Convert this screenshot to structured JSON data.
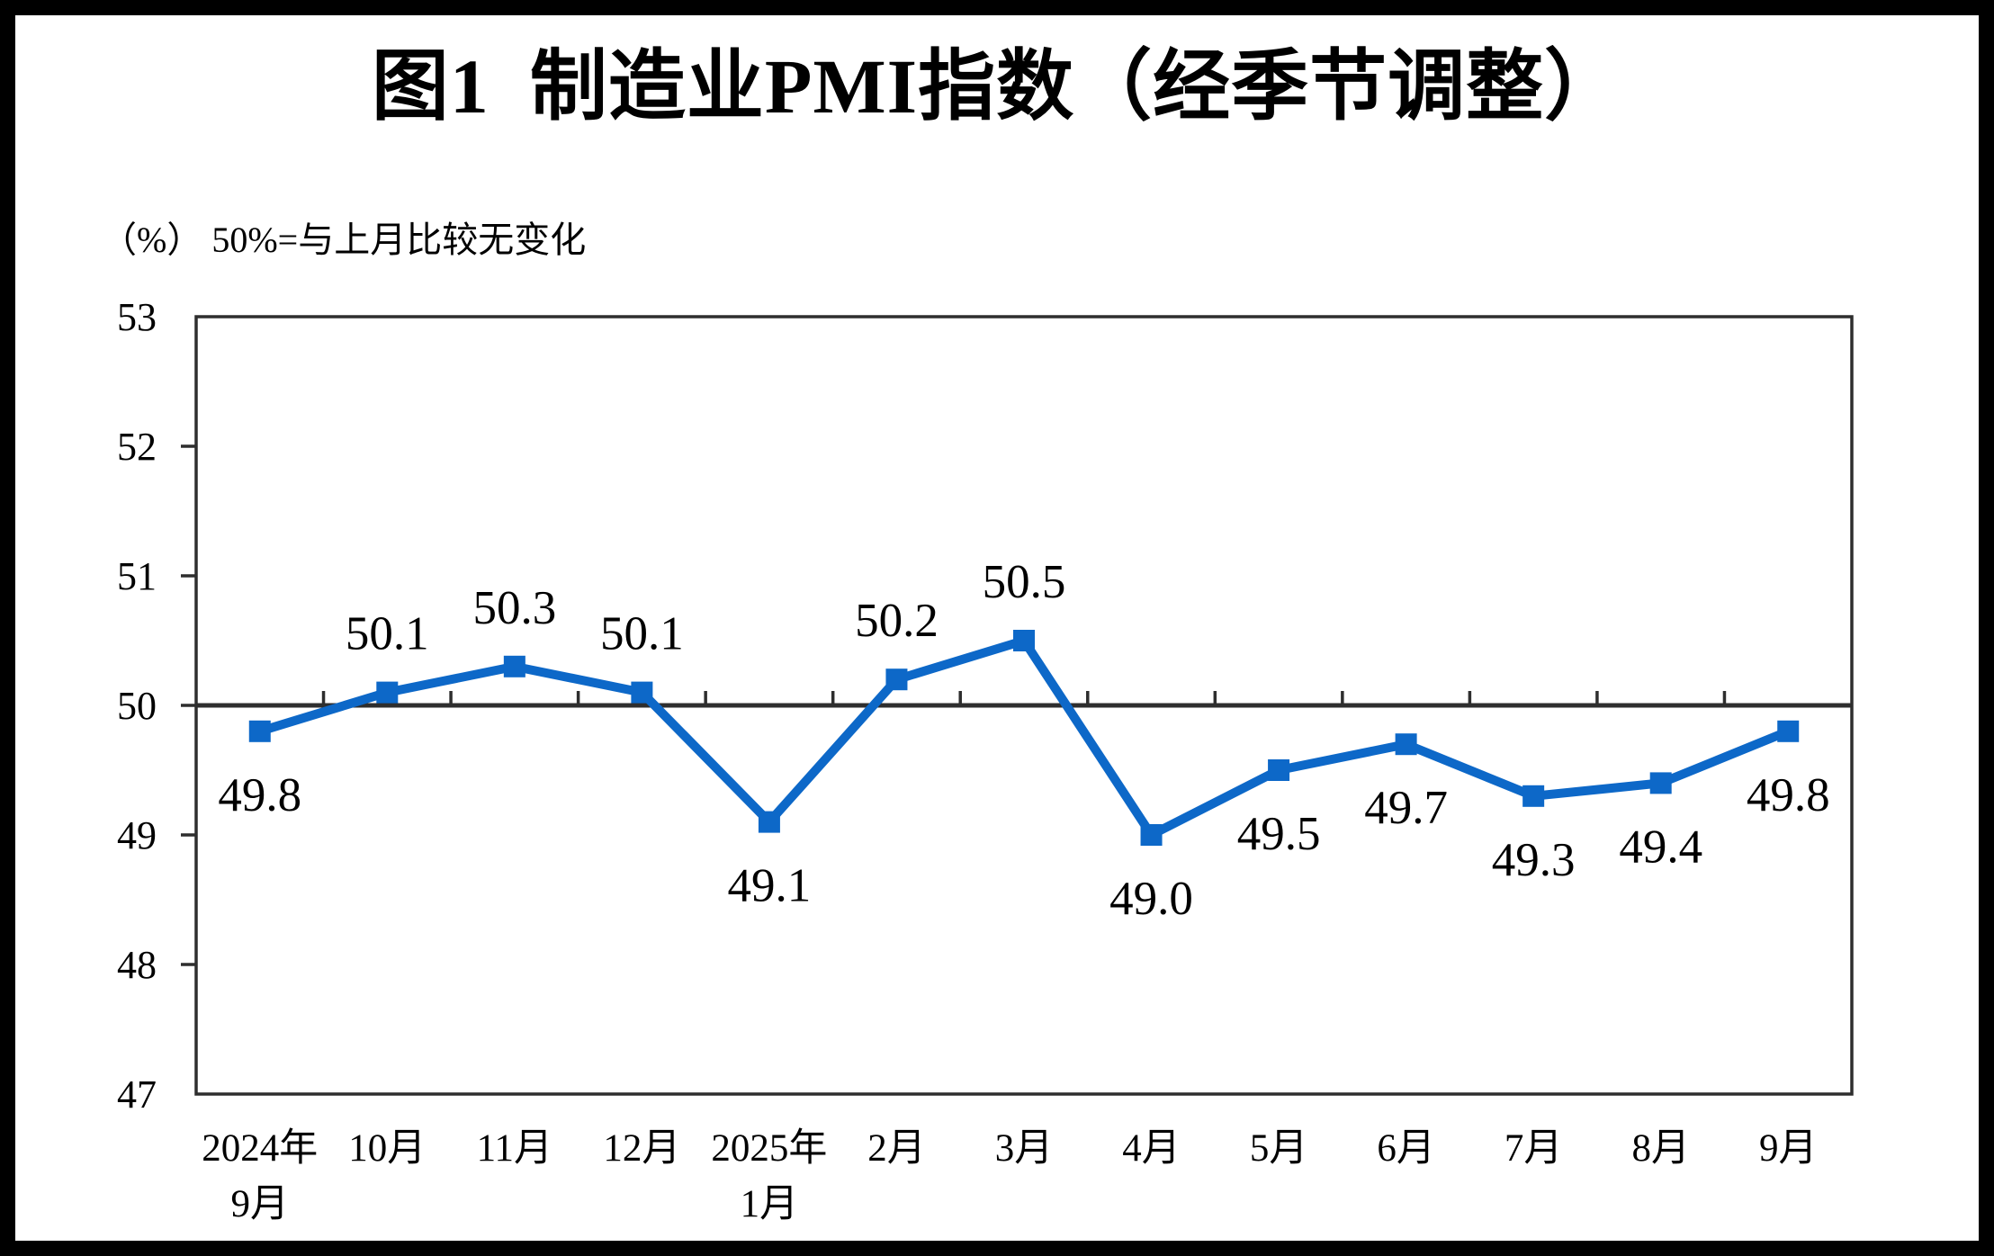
{
  "chart_data": {
    "type": "line",
    "title": "图1  制造业PMI指数（经季节调整）",
    "unit_note": "（%） 50%=与上月比较无变化",
    "categories": [
      [
        "2024年",
        "9月"
      ],
      [
        "10月"
      ],
      [
        "11月"
      ],
      [
        "12月"
      ],
      [
        "2025年",
        "1月"
      ],
      [
        "2月"
      ],
      [
        "3月"
      ],
      [
        "4月"
      ],
      [
        "5月"
      ],
      [
        "6月"
      ],
      [
        "7月"
      ],
      [
        "8月"
      ],
      [
        "9月"
      ]
    ],
    "series": [
      {
        "name": "制造业PMI",
        "values": [
          49.8,
          50.1,
          50.3,
          50.1,
          49.1,
          50.2,
          50.5,
          49.0,
          49.5,
          49.7,
          49.3,
          49.4,
          49.8
        ],
        "labels": [
          "49.8",
          "50.1",
          "50.3",
          "50.1",
          "49.1",
          "50.2",
          "50.5",
          "49.0",
          "49.5",
          "49.7",
          "49.3",
          "49.4",
          "49.8"
        ],
        "label_positions": [
          "below",
          "above",
          "above",
          "above",
          "below",
          "above",
          "above",
          "below",
          "below",
          "below",
          "below",
          "below",
          "below"
        ]
      }
    ],
    "ylim": [
      47,
      53
    ],
    "yticks": [
      53,
      52,
      51,
      50,
      49,
      48,
      47
    ],
    "reference_line": 50,
    "grid": "off",
    "legend": "none",
    "line_color": "#0D68C8",
    "marker": "square",
    "axis_color": "#2E2E2E"
  }
}
